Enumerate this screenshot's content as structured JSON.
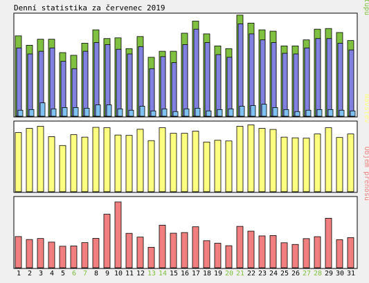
{
  "title": "Denní statistika za červenec 2019",
  "colors": {
    "background": "#f0f0f0",
    "panel_bg": "#ffffff",
    "hits": "#80c040",
    "files": "#8080e0",
    "pages": "#80c0f0",
    "visits": "#ffff80",
    "kbytes": "#f08080",
    "weekend_label": "#80c040",
    "weekday_label": "#000000"
  },
  "chart_data": [
    {
      "type": "bar",
      "name": "hits-files-pages",
      "axis_max_label": "15186",
      "ylim": [
        0,
        15186
      ],
      "legend_parts": [
        "Stránek",
        "Souborů",
        "Přístupů"
      ],
      "legend_separator": "/",
      "categories": [
        "1",
        "2",
        "3",
        "4",
        "5",
        "6",
        "7",
        "8",
        "9",
        "10",
        "11",
        "12",
        "13",
        "14",
        "15",
        "16",
        "17",
        "18",
        "19",
        "20",
        "21",
        "22",
        "23",
        "24",
        "25",
        "26",
        "27",
        "28",
        "29",
        "30",
        "31"
      ],
      "series": [
        {
          "name": "Přístupů",
          "values": [
            12000,
            10600,
            11500,
            11500,
            9500,
            9100,
            10900,
            12900,
            11600,
            11700,
            10100,
            11900,
            8800,
            9700,
            9700,
            12400,
            14200,
            12300,
            10500,
            10100,
            15100,
            13900,
            12900,
            12700,
            10500,
            10500,
            11400,
            13000,
            13100,
            12500,
            11300
          ]
        },
        {
          "name": "Souborů",
          "values": [
            10200,
            9300,
            9700,
            10200,
            8200,
            7100,
            9700,
            11000,
            10700,
            10000,
            9300,
            10400,
            7100,
            8900,
            8000,
            10700,
            13000,
            11000,
            9200,
            8800,
            13800,
            12300,
            11400,
            11000,
            9400,
            9300,
            10200,
            11600,
            11600,
            10900,
            9900
          ]
        },
        {
          "name": "Stránek",
          "values": [
            900,
            1000,
            2000,
            1100,
            1300,
            1300,
            1200,
            1700,
            1700,
            1100,
            900,
            1500,
            800,
            1100,
            700,
            1100,
            1200,
            800,
            1000,
            1100,
            1500,
            1600,
            1800,
            1300,
            1000,
            700,
            900,
            1000,
            1000,
            900,
            800
          ]
        }
      ]
    },
    {
      "type": "bar",
      "name": "visits",
      "axis_max_label": "380",
      "ylim": [
        0,
        380
      ],
      "legend": "Návštěv",
      "categories": [
        "1",
        "2",
        "3",
        "4",
        "5",
        "6",
        "7",
        "8",
        "9",
        "10",
        "11",
        "12",
        "13",
        "14",
        "15",
        "16",
        "17",
        "18",
        "19",
        "20",
        "21",
        "22",
        "23",
        "24",
        "25",
        "26",
        "27",
        "28",
        "29",
        "30",
        "31"
      ],
      "values": [
        338,
        362,
        374,
        315,
        264,
        326,
        312,
        368,
        366,
        324,
        322,
        357,
        292,
        366,
        334,
        334,
        346,
        284,
        294,
        290,
        374,
        382,
        362,
        356,
        312,
        308,
        306,
        330,
        366,
        310,
        330
      ]
    },
    {
      "type": "bar",
      "name": "kbytes",
      "axis_max_label": "525496",
      "ylim": [
        0,
        525496
      ],
      "legend": "Objem přenosu",
      "categories": [
        "1",
        "2",
        "3",
        "4",
        "5",
        "6",
        "7",
        "8",
        "9",
        "10",
        "11",
        "12",
        "13",
        "14",
        "15",
        "16",
        "17",
        "18",
        "19",
        "20",
        "21",
        "22",
        "23",
        "24",
        "25",
        "26",
        "27",
        "28",
        "29",
        "30",
        "31"
      ],
      "values": [
        242000,
        219000,
        227000,
        199000,
        167000,
        169000,
        195000,
        228000,
        415000,
        510000,
        267000,
        238000,
        159000,
        330000,
        268000,
        273000,
        318000,
        210000,
        190000,
        171000,
        321000,
        284000,
        247000,
        250000,
        194000,
        181000,
        226000,
        241000,
        384000,
        218000,
        234000
      ]
    }
  ],
  "x_axis": {
    "labels": [
      "1",
      "2",
      "3",
      "4",
      "5",
      "6",
      "7",
      "8",
      "9",
      "10",
      "11",
      "12",
      "13",
      "14",
      "15",
      "16",
      "17",
      "18",
      "19",
      "20",
      "21",
      "22",
      "23",
      "24",
      "25",
      "26",
      "27",
      "28",
      "29",
      "30",
      "31"
    ],
    "weekend": [
      false,
      false,
      false,
      false,
      false,
      true,
      true,
      false,
      false,
      false,
      false,
      false,
      true,
      true,
      false,
      false,
      false,
      false,
      false,
      true,
      true,
      false,
      false,
      false,
      false,
      false,
      true,
      true,
      false,
      false,
      false
    ]
  }
}
